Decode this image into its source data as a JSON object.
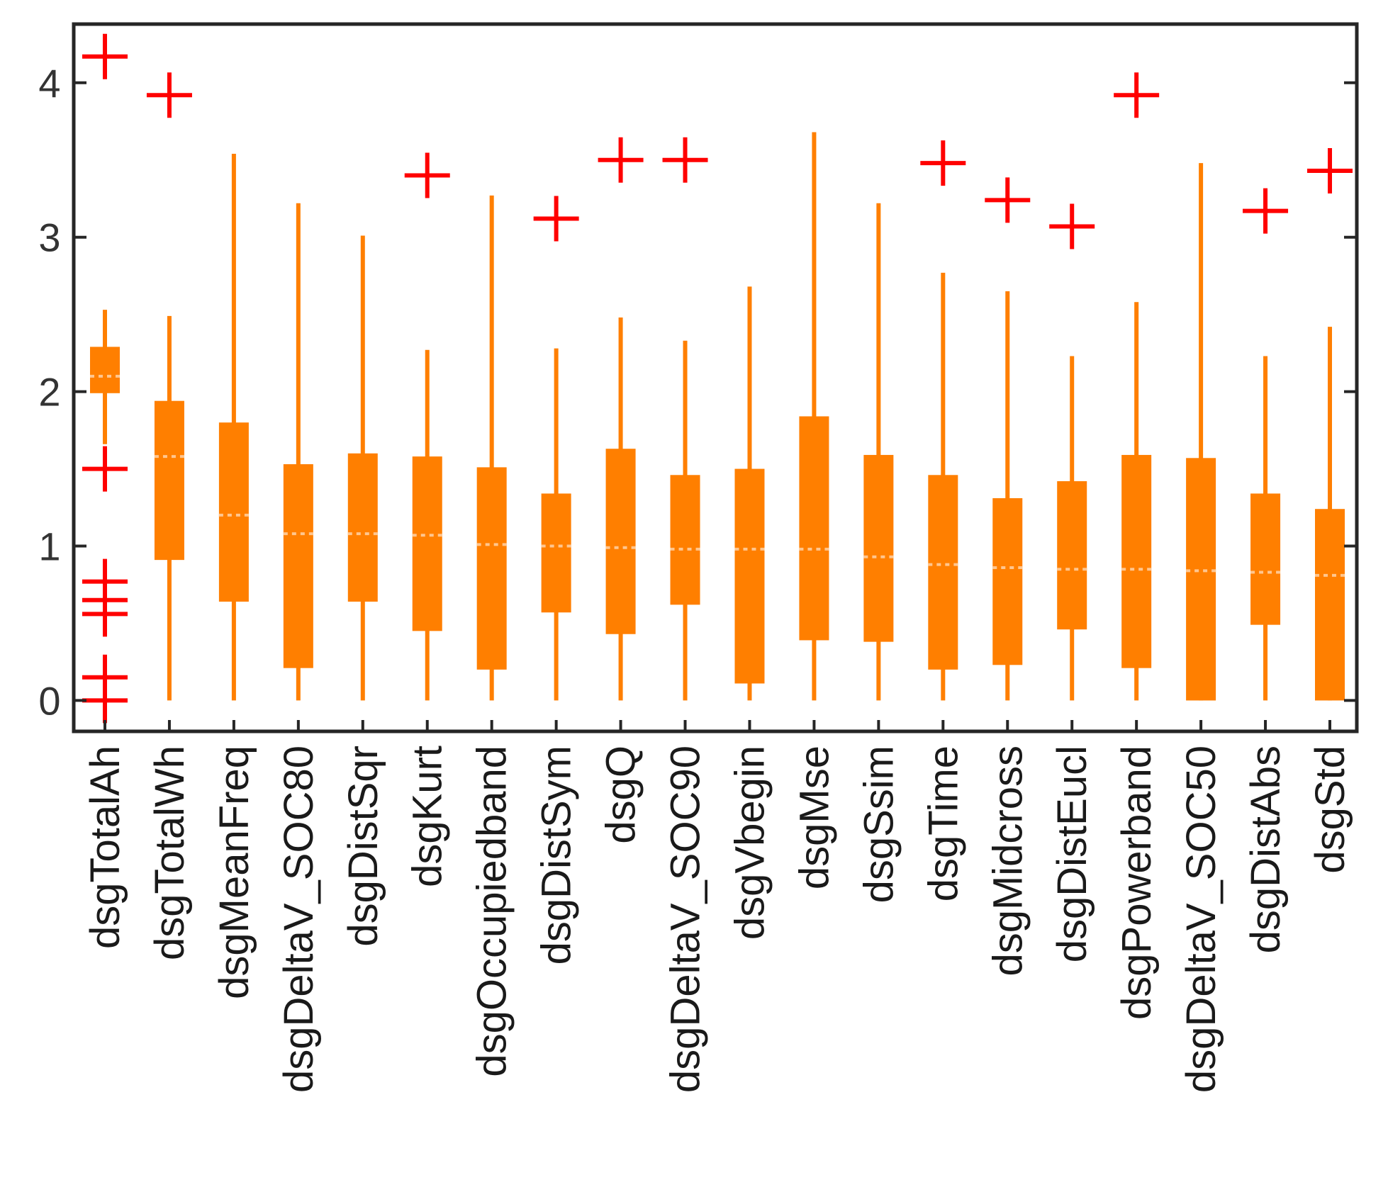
{
  "chart_data": {
    "type": "boxplot",
    "title": "",
    "xlabel": "",
    "ylabel": "",
    "ylim": [
      -0.2,
      4.38
    ],
    "yticks": [
      0,
      1,
      2,
      3,
      4
    ],
    "grid": false,
    "colors": {
      "box": "#ff7f00",
      "outlier": "#ff0000",
      "axis": "#262626"
    },
    "categories": [
      "dsgTotalAh",
      "dsgTotalWh",
      "dsgMeanFreq",
      "dsgDeltaV_SOC80",
      "dsgDistSqr",
      "dsgKurt",
      "dsgOccupiedband",
      "dsgDistSym",
      "dsgQ",
      "dsgDeltaV_SOC90",
      "dsgVbegin",
      "dsgMse",
      "dsgSsim",
      "dsgTime",
      "dsgMidcross",
      "dsgDistEucl",
      "dsgPowerband",
      "dsgDeltaV_SOC50",
      "dsgDistAbs",
      "dsgStd"
    ],
    "boxes": [
      {
        "name": "dsgTotalAh",
        "whisker_low": 1.66,
        "q1": 1.99,
        "median": 2.1,
        "q3": 2.29,
        "whisker_high": 2.53,
        "outliers": [
          4.17,
          1.5,
          0.77,
          0.65,
          0.56,
          0.15,
          0.0
        ]
      },
      {
        "name": "dsgTotalWh",
        "whisker_low": 0.0,
        "q1": 0.91,
        "median": 1.58,
        "q3": 1.94,
        "whisker_high": 2.49,
        "outliers": [
          3.92
        ]
      },
      {
        "name": "dsgMeanFreq",
        "whisker_low": 0.0,
        "q1": 0.64,
        "median": 1.2,
        "q3": 1.8,
        "whisker_high": 3.54,
        "outliers": []
      },
      {
        "name": "dsgDeltaV_SOC80",
        "whisker_low": 0.0,
        "q1": 0.21,
        "median": 1.08,
        "q3": 1.53,
        "whisker_high": 3.22,
        "outliers": []
      },
      {
        "name": "dsgDistSqr",
        "whisker_low": 0.0,
        "q1": 0.64,
        "median": 1.08,
        "q3": 1.6,
        "whisker_high": 3.01,
        "outliers": []
      },
      {
        "name": "dsgKurt",
        "whisker_low": 0.0,
        "q1": 0.45,
        "median": 1.07,
        "q3": 1.58,
        "whisker_high": 2.27,
        "outliers": [
          3.4
        ]
      },
      {
        "name": "dsgOccupiedband",
        "whisker_low": 0.0,
        "q1": 0.2,
        "median": 1.01,
        "q3": 1.51,
        "whisker_high": 3.27,
        "outliers": []
      },
      {
        "name": "dsgDistSym",
        "whisker_low": 0.0,
        "q1": 0.57,
        "median": 1.0,
        "q3": 1.34,
        "whisker_high": 2.28,
        "outliers": [
          3.12
        ]
      },
      {
        "name": "dsgQ",
        "whisker_low": 0.0,
        "q1": 0.43,
        "median": 0.99,
        "q3": 1.63,
        "whisker_high": 2.48,
        "outliers": [
          3.5
        ]
      },
      {
        "name": "dsgDeltaV_SOC90",
        "whisker_low": 0.0,
        "q1": 0.62,
        "median": 0.98,
        "q3": 1.46,
        "whisker_high": 2.33,
        "outliers": [
          3.5
        ]
      },
      {
        "name": "dsgVbegin",
        "whisker_low": 0.0,
        "q1": 0.11,
        "median": 0.98,
        "q3": 1.5,
        "whisker_high": 2.68,
        "outliers": []
      },
      {
        "name": "dsgMse",
        "whisker_low": 0.0,
        "q1": 0.39,
        "median": 0.98,
        "q3": 1.84,
        "whisker_high": 3.68,
        "outliers": []
      },
      {
        "name": "dsgSsim",
        "whisker_low": 0.0,
        "q1": 0.38,
        "median": 0.93,
        "q3": 1.59,
        "whisker_high": 3.22,
        "outliers": []
      },
      {
        "name": "dsgTime",
        "whisker_low": 0.0,
        "q1": 0.2,
        "median": 0.88,
        "q3": 1.46,
        "whisker_high": 2.77,
        "outliers": [
          3.48
        ]
      },
      {
        "name": "dsgMidcross",
        "whisker_low": 0.0,
        "q1": 0.23,
        "median": 0.86,
        "q3": 1.31,
        "whisker_high": 2.65,
        "outliers": [
          3.24
        ]
      },
      {
        "name": "dsgDistEucl",
        "whisker_low": 0.0,
        "q1": 0.46,
        "median": 0.85,
        "q3": 1.42,
        "whisker_high": 2.23,
        "outliers": [
          3.07
        ]
      },
      {
        "name": "dsgPowerband",
        "whisker_low": 0.0,
        "q1": 0.21,
        "median": 0.85,
        "q3": 1.59,
        "whisker_high": 2.58,
        "outliers": [
          3.92
        ]
      },
      {
        "name": "dsgDeltaV_SOC50",
        "whisker_low": 0.0,
        "q1": 0.0,
        "median": 0.84,
        "q3": 1.57,
        "whisker_high": 3.48,
        "outliers": []
      },
      {
        "name": "dsgDistAbs",
        "whisker_low": 0.0,
        "q1": 0.49,
        "median": 0.83,
        "q3": 1.34,
        "whisker_high": 2.23,
        "outliers": [
          3.17
        ]
      },
      {
        "name": "dsgStd",
        "whisker_low": 0.0,
        "q1": 0.0,
        "median": 0.81,
        "q3": 1.24,
        "whisker_high": 2.42,
        "outliers": [
          3.43
        ]
      }
    ]
  }
}
